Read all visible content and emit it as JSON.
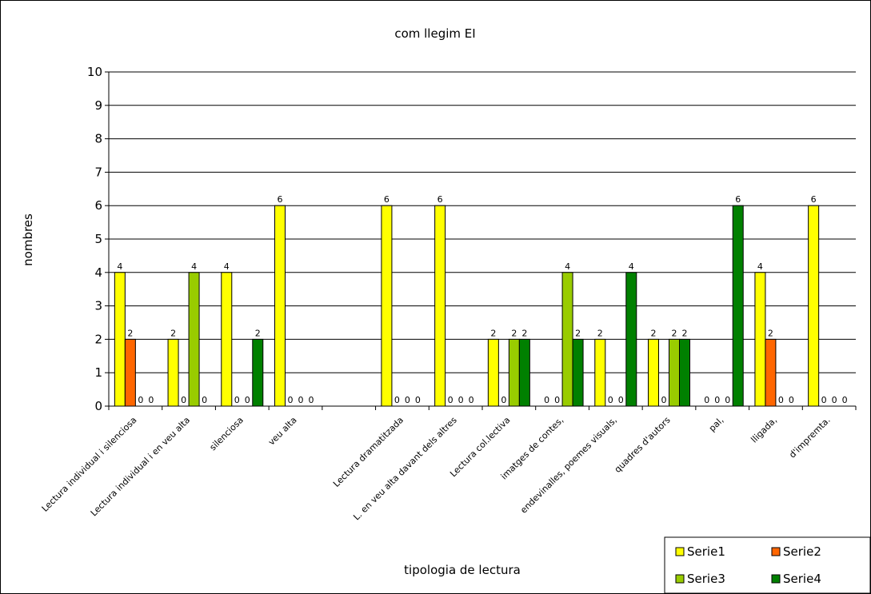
{
  "chart_data": {
    "type": "bar",
    "title": "com llegim EI",
    "xlabel": "tipologia de lectura",
    "ylabel": "nombres",
    "ylim": [
      0,
      10
    ],
    "yticks": [
      "0",
      "1",
      "2",
      "3",
      "4",
      "5",
      "6",
      "7",
      "8",
      "9",
      "10"
    ],
    "grid": true,
    "legend_position": "bottom-right",
    "categories": [
      "Lectura individual i silenciosa",
      "Lectura individual i en veu alta",
      "silenciosa",
      "veu alta",
      "",
      "Lectura dramatitzada",
      "L. en veu alta davant dels altres",
      "Lectura col.lectiva",
      "imatges de contes,",
      "endevinalles, poemes visuals,",
      "quadres d'autors",
      "pal,",
      "lligada,",
      "d'impremta."
    ],
    "series": [
      {
        "name": "Serie1",
        "color": "#FFFF00",
        "values": [
          4,
          2,
          4,
          6,
          null,
          6,
          6,
          2,
          0,
          2,
          2,
          0,
          4,
          6
        ]
      },
      {
        "name": "Serie2",
        "color": "#FF6600",
        "values": [
          2,
          0,
          0,
          0,
          null,
          0,
          0,
          0,
          0,
          0,
          0,
          0,
          2,
          0
        ]
      },
      {
        "name": "Serie3",
        "color": "#99CC00",
        "values": [
          0,
          4,
          0,
          0,
          null,
          0,
          0,
          2,
          4,
          0,
          2,
          0,
          0,
          0
        ]
      },
      {
        "name": "Serie4",
        "color": "#008000",
        "values": [
          0,
          0,
          2,
          0,
          null,
          0,
          0,
          2,
          2,
          4,
          2,
          6,
          0,
          0
        ]
      }
    ]
  }
}
